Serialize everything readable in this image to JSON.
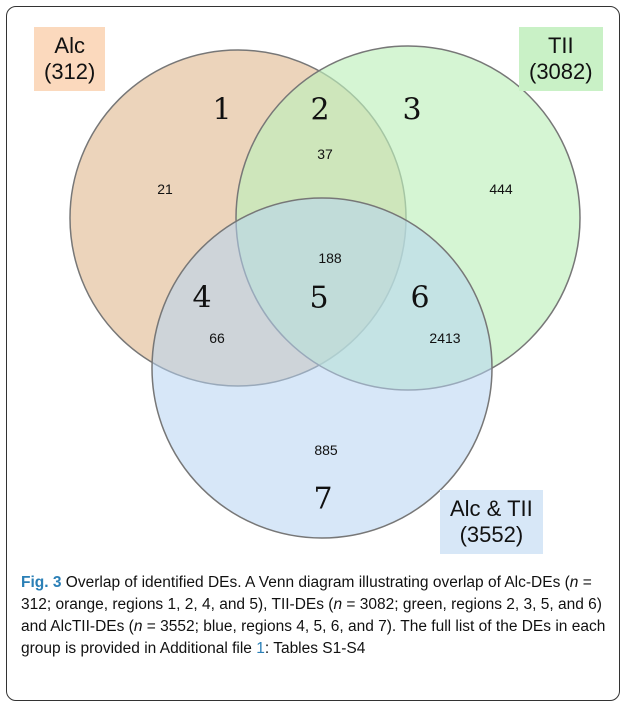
{
  "sets": [
    {
      "name": "Alc",
      "count_label": "(312)",
      "color": "#eac9a8"
    },
    {
      "name": "TII",
      "count_label": "(3082)",
      "color": "#c8f3c4"
    },
    {
      "name": "Alc & TII",
      "count_label": "(3552)",
      "color": "#c3dcf3"
    }
  ],
  "regions": [
    {
      "number": "1",
      "count": "21"
    },
    {
      "number": "2",
      "count": "37"
    },
    {
      "number": "3",
      "count": "444"
    },
    {
      "number": "4",
      "count": "66"
    },
    {
      "number": "5",
      "count": "188"
    },
    {
      "number": "6",
      "count": "2413"
    },
    {
      "number": "7",
      "count": "885"
    }
  ],
  "caption": {
    "fig_label": "Fig. 3",
    "part1": " Overlap of identified DEs. A Venn diagram illustrating overlap of Alc-DEs (",
    "n": "n",
    "part2": " = 312; orange, regions 1, 2, 4, and 5), TII-DEs (",
    "part3": " = 3082; green, regions 2, 3, 5, and 6) and AlcTII-DEs (",
    "part4": " = 3552; blue, regions 4, 5, 6, and 7). The full list of the DEs in each group is provided in Additional file ",
    "file_ref": "1",
    "part5": ": Tables S1-S4"
  }
}
